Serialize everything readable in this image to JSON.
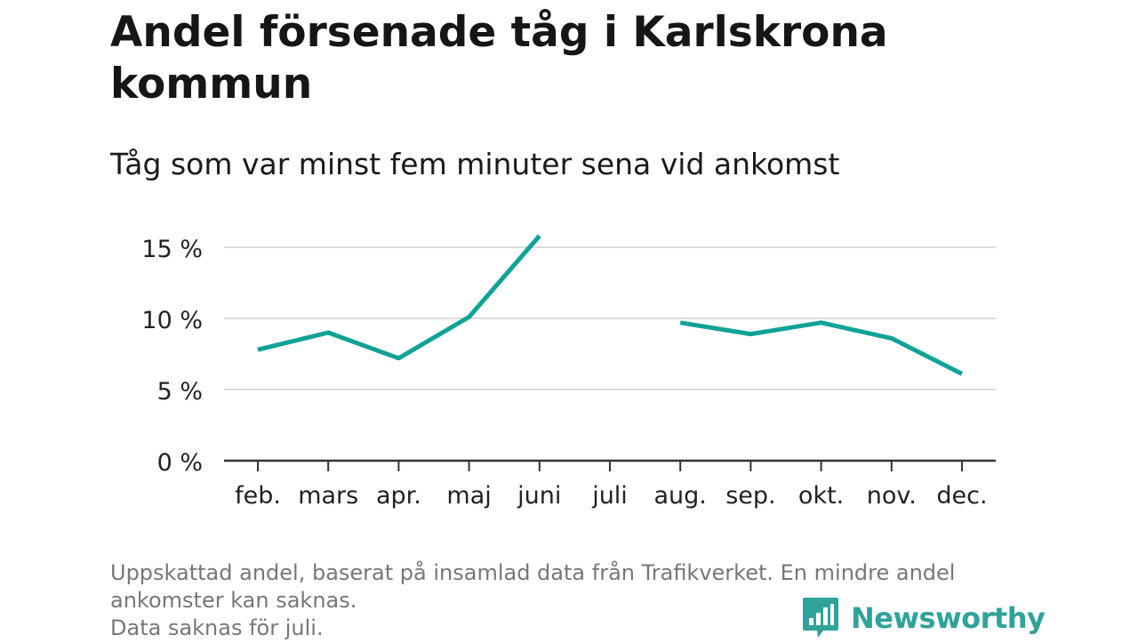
{
  "chart_data": {
    "type": "line",
    "title": "Andel försenade tåg i Karlskrona kommun",
    "subtitle": "Tåg som var minst fem minuter sena vid ankomst",
    "categories": [
      "feb.",
      "mars",
      "apr.",
      "maj",
      "juni",
      "juli",
      "aug.",
      "sep.",
      "okt.",
      "nov.",
      "dec."
    ],
    "series": [
      {
        "values": [
          7.8,
          9.0,
          7.2,
          10.1,
          15.8,
          null,
          9.7,
          8.9,
          9.7,
          8.6,
          6.1
        ]
      }
    ],
    "y_ticks": [
      0,
      5,
      10,
      15
    ],
    "y_tick_labels": [
      "0 %",
      "5 %",
      "10 %",
      "15 %"
    ],
    "ylim": [
      0,
      16.5
    ],
    "grid": true,
    "colors": {
      "line": "#10a296",
      "grid": "#dcdcdc",
      "axis": "#333333"
    }
  },
  "footnote": {
    "line1": "Uppskattad andel, baserat på insamlad data från Trafikverket. En mindre andel",
    "line2": "ankomster kan saknas.",
    "line3": "Data saknas för juli."
  },
  "logo": {
    "icon": "bar-chart-speech-bubble-icon",
    "text": "Newsworthy",
    "color": "#2fa39a"
  }
}
